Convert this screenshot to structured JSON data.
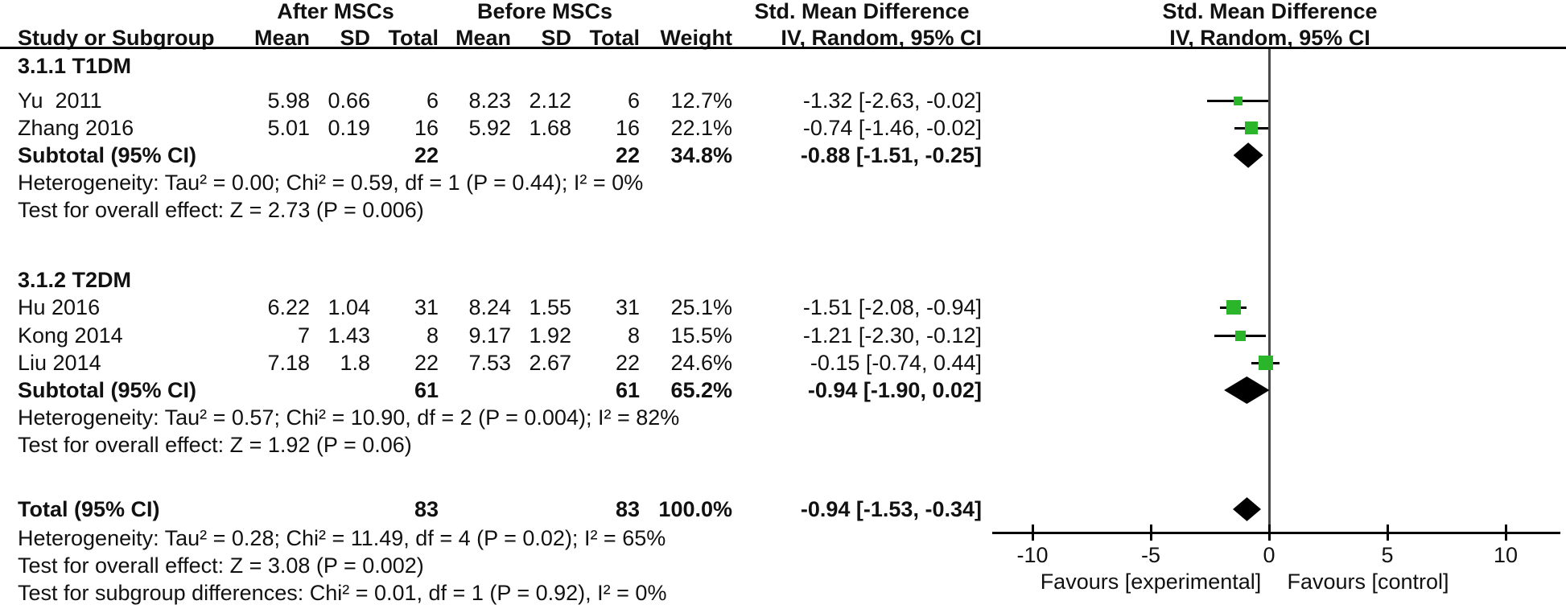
{
  "header": {
    "group1": "After MSCs",
    "group2": "Before MSCs",
    "effect_left": "Std. Mean Difference",
    "effect_right": "Std. Mean Difference",
    "study_col": "Study or Subgroup",
    "mean1": "Mean",
    "sd1": "SD",
    "total1": "Total",
    "mean2": "Mean",
    "sd2": "SD",
    "total2": "Total",
    "weight": "Weight",
    "method_left": "IV, Random, 95% CI",
    "method_right": "IV, Random, 95% CI"
  },
  "table": {
    "sections": [
      {
        "title": "3.1.1 T1DM",
        "rows": [
          {
            "study": "Yu  2011",
            "mean1": "5.98",
            "sd1": "0.66",
            "total1": "6",
            "mean2": "8.23",
            "sd2": "2.12",
            "total2": "6",
            "weight": "12.7%",
            "ci": "-1.32 [-2.63, -0.02]"
          },
          {
            "study": "Zhang 2016",
            "mean1": "5.01",
            "sd1": "0.19",
            "total1": "16",
            "mean2": "5.92",
            "sd2": "1.68",
            "total2": "16",
            "weight": "22.1%",
            "ci": "-0.74 [-1.46, -0.02]"
          }
        ],
        "subtotal": {
          "label": "Subtotal (95% CI)",
          "total1": "22",
          "total2": "22",
          "weight": "34.8%",
          "ci": "-0.88 [-1.51, -0.25]"
        },
        "heterogeneity": "Heterogeneity: Tau² = 0.00; Chi² = 0.59, df = 1 (P = 0.44); I² = 0%",
        "overall_effect": "Test for overall effect: Z = 2.73 (P = 0.006)"
      },
      {
        "title": "3.1.2 T2DM",
        "rows": [
          {
            "study": "Hu 2016",
            "mean1": "6.22",
            "sd1": "1.04",
            "total1": "31",
            "mean2": "8.24",
            "sd2": "1.55",
            "total2": "31",
            "weight": "25.1%",
            "ci": "-1.51 [-2.08, -0.94]"
          },
          {
            "study": "Kong 2014",
            "mean1": "7",
            "sd1": "1.43",
            "total1": "8",
            "mean2": "9.17",
            "sd2": "1.92",
            "total2": "8",
            "weight": "15.5%",
            "ci": "-1.21 [-2.30, -0.12]"
          },
          {
            "study": "Liu 2014",
            "mean1": "7.18",
            "sd1": "1.8",
            "total1": "22",
            "mean2": "7.53",
            "sd2": "2.67",
            "total2": "22",
            "weight": "24.6%",
            "ci": "-0.15 [-0.74, 0.44]"
          }
        ],
        "subtotal": {
          "label": "Subtotal (95% CI)",
          "total1": "61",
          "total2": "61",
          "weight": "65.2%",
          "ci": "-0.94 [-1.90, 0.02]"
        },
        "heterogeneity": "Heterogeneity: Tau² = 0.57; Chi² = 10.90, df = 2 (P = 0.004); I² = 82%",
        "overall_effect": "Test for overall effect: Z = 1.92 (P = 0.06)"
      }
    ],
    "total": {
      "label": "Total (95% CI)",
      "total1": "83",
      "total2": "83",
      "weight": "100.0%",
      "ci": "-0.94 [-1.53, -0.34]"
    },
    "total_heterogeneity": "Heterogeneity: Tau² = 0.28; Chi² = 11.49, df = 4 (P = 0.02); I² = 65%",
    "total_overall_effect": "Test for overall effect: Z = 3.08 (P = 0.002)",
    "subgroup_differences": "Test for subgroup differences: Chi² = 0.01, df = 1 (P = 0.92), I² = 0%"
  },
  "chart_data": {
    "type": "forest",
    "effect_measure": "Std. Mean Difference, IV, Random, 95% CI",
    "axis": {
      "ticks": [
        -10,
        -5,
        0,
        5,
        10
      ],
      "min": -11.7,
      "max": 12.3,
      "zero_reference": 0
    },
    "favours_left": "Favours [experimental]",
    "favours_right": "Favours [control]",
    "marker_color": "#2bb52b",
    "studies": [
      {
        "name": "Yu 2011",
        "estimate": -1.32,
        "ci_low": -2.63,
        "ci_high": -0.02,
        "weight": 12.7,
        "row_id": "yu"
      },
      {
        "name": "Zhang 2016",
        "estimate": -0.74,
        "ci_low": -1.46,
        "ci_high": -0.02,
        "weight": 22.1,
        "row_id": "zhang"
      },
      {
        "name": "Hu 2016",
        "estimate": -1.51,
        "ci_low": -2.08,
        "ci_high": -0.94,
        "weight": 25.1,
        "row_id": "hu"
      },
      {
        "name": "Kong 2014",
        "estimate": -1.21,
        "ci_low": -2.3,
        "ci_high": -0.12,
        "weight": 15.5,
        "row_id": "kong"
      },
      {
        "name": "Liu 2014",
        "estimate": -0.15,
        "ci_low": -0.74,
        "ci_high": 0.44,
        "weight": 24.6,
        "row_id": "liu"
      }
    ],
    "diamonds": [
      {
        "name": "Subtotal T1DM",
        "estimate": -0.88,
        "ci_low": -1.51,
        "ci_high": -0.25,
        "row_id": "sub1"
      },
      {
        "name": "Subtotal T2DM",
        "estimate": -0.94,
        "ci_low": -1.9,
        "ci_high": 0.02,
        "row_id": "sub2"
      },
      {
        "name": "Total",
        "estimate": -0.94,
        "ci_low": -1.53,
        "ci_high": -0.34,
        "row_id": "total"
      }
    ]
  }
}
